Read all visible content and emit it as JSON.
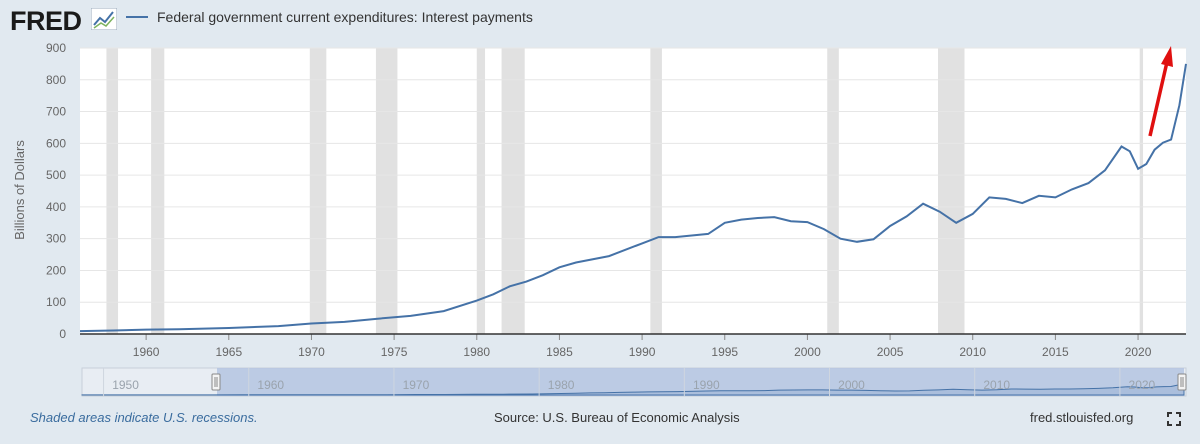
{
  "header": {
    "logo_text": "FRED",
    "legend_label": "Federal government current expenditures: Interest payments",
    "series_color": "#4572a7"
  },
  "footer": {
    "note": "Shaded areas indicate U.S. recessions.",
    "source": "Source: U.S. Bureau of Economic Analysis",
    "site": "fred.stlouisfed.org"
  },
  "chart_data": {
    "type": "line",
    "title": "",
    "ylabel": "Billions of Dollars",
    "xlabel": "",
    "xlim": [
      1956,
      2022.9
    ],
    "ylim": [
      0,
      900
    ],
    "y_ticks": [
      0,
      100,
      200,
      300,
      400,
      500,
      600,
      700,
      800,
      900
    ],
    "x_ticks": [
      1960,
      1965,
      1970,
      1975,
      1980,
      1985,
      1990,
      1995,
      2000,
      2005,
      2010,
      2015,
      2020
    ],
    "grid": true,
    "legend_position": "top-left",
    "recessions": [
      [
        1957.6,
        1958.3
      ],
      [
        1960.3,
        1961.1
      ],
      [
        1969.9,
        1970.9
      ],
      [
        1973.9,
        1975.2
      ],
      [
        1980.0,
        1980.5
      ],
      [
        1981.5,
        1982.9
      ],
      [
        1990.5,
        1991.2
      ],
      [
        2001.2,
        2001.9
      ],
      [
        2007.9,
        2009.5
      ],
      [
        2020.1,
        2020.3
      ]
    ],
    "series": [
      {
        "x": [
          1956,
          1958,
          1960,
          1962,
          1965,
          1968,
          1970,
          1972,
          1974,
          1976,
          1978,
          1980,
          1981,
          1982,
          1983,
          1984,
          1985,
          1986,
          1988,
          1990,
          1991,
          1992,
          1993,
          1994,
          1995,
          1996,
          1997,
          1998,
          1999,
          2000,
          2001,
          2002,
          2003,
          2004,
          2005,
          2006,
          2007,
          2008,
          2009,
          2010,
          2011,
          2012,
          2013,
          2014,
          2015,
          2016,
          2017,
          2018,
          2019,
          2019.5,
          2020,
          2020.5,
          2021,
          2021.5,
          2022,
          2022.5,
          2022.9
        ],
        "values": [
          9,
          11,
          14,
          15,
          19,
          25,
          33,
          38,
          48,
          57,
          72,
          105,
          125,
          150,
          165,
          185,
          210,
          225,
          245,
          285,
          305,
          305,
          310,
          315,
          350,
          360,
          365,
          368,
          355,
          352,
          330,
          300,
          290,
          298,
          340,
          370,
          410,
          385,
          350,
          378,
          430,
          425,
          412,
          435,
          430,
          455,
          475,
          515,
          590,
          575,
          520,
          535,
          580,
          602,
          612,
          720,
          850
        ]
      }
    ],
    "navigator_ticks": [
      1950,
      1960,
      1970,
      1980,
      1990,
      2000,
      2010,
      2020
    ]
  }
}
